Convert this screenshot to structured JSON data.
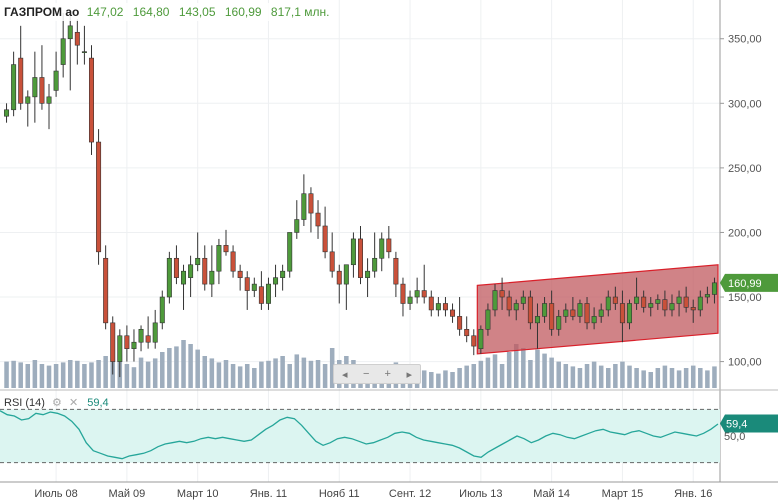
{
  "header": {
    "symbol": "ГАЗПРОМ ао",
    "open": "147,02",
    "high": "164,80",
    "low": "143,05",
    "close": "160,99",
    "volume": "817,1 млн."
  },
  "nav": {
    "prev": "◂",
    "zoom_out": "−",
    "zoom_in": "+",
    "next": "▸"
  },
  "colors": {
    "up": "#4e9a3b",
    "down": "#c9513a",
    "volume": "#9eadbd",
    "channel_fill": "#c05a5f",
    "channel_edge": "#d9202a",
    "rsi_line": "#26a69a",
    "rsi_fill": "#dcf5f1",
    "price_tag": "#4e9a3b",
    "rsi_tag": "#1a8a7a"
  },
  "chart_data": [
    {
      "type": "candlestick",
      "title": "",
      "ylim": [
        78,
        380
      ],
      "yticks": [
        "100,00",
        "150,00",
        "200,00",
        "250,00",
        "300,00",
        "350,00"
      ],
      "xticks": [
        {
          "label": "Июль 08",
          "index": 7
        },
        {
          "label": "Май 09",
          "index": 17
        },
        {
          "label": "Март 10",
          "index": 27
        },
        {
          "label": "Янв. 11",
          "index": 37
        },
        {
          "label": "Нояб 11",
          "index": 47
        },
        {
          "label": "Сент. 12",
          "index": 57
        },
        {
          "label": "Июль 13",
          "index": 67
        },
        {
          "label": "Май 14",
          "index": 77
        },
        {
          "label": "Март 15",
          "index": 87
        },
        {
          "label": "Янв. 16",
          "index": 97
        }
      ],
      "current_price_label": "160,99",
      "current_price": 161,
      "channel": {
        "start_index": 67,
        "upper": [
          159,
          175
        ],
        "lower": [
          106,
          122
        ]
      },
      "ohlc": [
        [
          290,
          300,
          285,
          295
        ],
        [
          295,
          340,
          290,
          330
        ],
        [
          335,
          360,
          295,
          300
        ],
        [
          300,
          310,
          282,
          305
        ],
        [
          305,
          340,
          285,
          320
        ],
        [
          320,
          345,
          295,
          300
        ],
        [
          300,
          315,
          280,
          305
        ],
        [
          310,
          340,
          305,
          325
        ],
        [
          330,
          370,
          320,
          350
        ],
        [
          350,
          370,
          310,
          360
        ],
        [
          355,
          365,
          330,
          345
        ],
        [
          340,
          360,
          330,
          340
        ],
        [
          335,
          345,
          260,
          270
        ],
        [
          270,
          280,
          175,
          185
        ],
        [
          180,
          190,
          125,
          130
        ],
        [
          130,
          135,
          90,
          100
        ],
        [
          100,
          125,
          88,
          120
        ],
        [
          120,
          128,
          100,
          110
        ],
        [
          110,
          125,
          100,
          115
        ],
        [
          115,
          128,
          108,
          125
        ],
        [
          120,
          135,
          110,
          115
        ],
        [
          115,
          140,
          110,
          130
        ],
        [
          130,
          155,
          125,
          150
        ],
        [
          150,
          185,
          145,
          180
        ],
        [
          180,
          190,
          160,
          165
        ],
        [
          160,
          175,
          140,
          170
        ],
        [
          165,
          182,
          150,
          175
        ],
        [
          175,
          200,
          170,
          180
        ],
        [
          180,
          190,
          155,
          160
        ],
        [
          160,
          190,
          150,
          170
        ],
        [
          170,
          195,
          160,
          190
        ],
        [
          190,
          202,
          182,
          185
        ],
        [
          185,
          190,
          165,
          170
        ],
        [
          170,
          175,
          155,
          165
        ],
        [
          165,
          170,
          140,
          155
        ],
        [
          155,
          165,
          150,
          160
        ],
        [
          158,
          170,
          140,
          145
        ],
        [
          145,
          165,
          140,
          160
        ],
        [
          160,
          175,
          150,
          165
        ],
        [
          165,
          175,
          155,
          170
        ],
        [
          170,
          200,
          165,
          200
        ],
        [
          200,
          225,
          195,
          210
        ],
        [
          210,
          245,
          205,
          230
        ],
        [
          230,
          235,
          200,
          215
        ],
        [
          215,
          225,
          195,
          205
        ],
        [
          205,
          220,
          180,
          185
        ],
        [
          185,
          200,
          165,
          170
        ],
        [
          170,
          175,
          145,
          160
        ],
        [
          160,
          175,
          140,
          175
        ],
        [
          175,
          200,
          165,
          195
        ],
        [
          195,
          205,
          160,
          165
        ],
        [
          165,
          180,
          150,
          170
        ],
        [
          170,
          200,
          165,
          180
        ],
        [
          180,
          200,
          170,
          195
        ],
        [
          195,
          205,
          180,
          185
        ],
        [
          180,
          185,
          150,
          160
        ],
        [
          160,
          165,
          135,
          145
        ],
        [
          145,
          155,
          140,
          150
        ],
        [
          150,
          165,
          145,
          155
        ],
        [
          155,
          175,
          145,
          150
        ],
        [
          150,
          155,
          135,
          140
        ],
        [
          140,
          150,
          135,
          145
        ],
        [
          145,
          150,
          135,
          140
        ],
        [
          140,
          145,
          130,
          135
        ],
        [
          135,
          150,
          120,
          125
        ],
        [
          125,
          135,
          115,
          120
        ],
        [
          120,
          125,
          105,
          112
        ],
        [
          110,
          128,
          106,
          125
        ],
        [
          125,
          145,
          120,
          140
        ],
        [
          140,
          160,
          135,
          155
        ],
        [
          155,
          165,
          140,
          150
        ],
        [
          150,
          155,
          135,
          140
        ],
        [
          140,
          148,
          132,
          145
        ],
        [
          145,
          155,
          140,
          150
        ],
        [
          150,
          155,
          125,
          130
        ],
        [
          130,
          145,
          110,
          135
        ],
        [
          135,
          150,
          130,
          145
        ],
        [
          145,
          155,
          120,
          125
        ],
        [
          125,
          140,
          120,
          135
        ],
        [
          135,
          145,
          130,
          140
        ],
        [
          140,
          150,
          132,
          135
        ],
        [
          135,
          148,
          130,
          145
        ],
        [
          145,
          150,
          125,
          130
        ],
        [
          130,
          142,
          125,
          135
        ],
        [
          135,
          145,
          130,
          140
        ],
        [
          140,
          155,
          135,
          150
        ],
        [
          150,
          158,
          140,
          145
        ],
        [
          145,
          155,
          115,
          130
        ],
        [
          130,
          148,
          125,
          145
        ],
        [
          145,
          165,
          140,
          150
        ],
        [
          150,
          155,
          138,
          142
        ],
        [
          142,
          150,
          135,
          145
        ],
        [
          145,
          152,
          140,
          148
        ],
        [
          148,
          155,
          135,
          140
        ],
        [
          140,
          152,
          135,
          145
        ],
        [
          145,
          155,
          135,
          150
        ],
        [
          150,
          158,
          138,
          142
        ],
        [
          142,
          148,
          130,
          140
        ],
        [
          140,
          155,
          135,
          150
        ],
        [
          150,
          158,
          145,
          152
        ],
        [
          152,
          165,
          145,
          161
        ]
      ],
      "volume": [
        0.33,
        0.34,
        0.32,
        0.3,
        0.35,
        0.3,
        0.28,
        0.3,
        0.32,
        0.35,
        0.34,
        0.3,
        0.32,
        0.35,
        0.4,
        0.38,
        0.42,
        0.3,
        0.26,
        0.38,
        0.33,
        0.37,
        0.45,
        0.5,
        0.52,
        0.6,
        0.55,
        0.48,
        0.4,
        0.37,
        0.32,
        0.35,
        0.3,
        0.27,
        0.3,
        0.25,
        0.33,
        0.34,
        0.37,
        0.4,
        0.3,
        0.42,
        0.38,
        0.34,
        0.35,
        0.3,
        0.5,
        0.35,
        0.4,
        0.35,
        0.3,
        0.28,
        0.3,
        0.23,
        0.26,
        0.32,
        0.22,
        0.25,
        0.2,
        0.22,
        0.2,
        0.18,
        0.22,
        0.2,
        0.25,
        0.28,
        0.3,
        0.34,
        0.38,
        0.42,
        0.3,
        0.45,
        0.55,
        0.5,
        0.35,
        0.48,
        0.43,
        0.38,
        0.33,
        0.3,
        0.27,
        0.25,
        0.3,
        0.33,
        0.28,
        0.25,
        0.3,
        0.33,
        0.28,
        0.25,
        0.22,
        0.2,
        0.25,
        0.28,
        0.25,
        0.22,
        0.25,
        0.28,
        0.25,
        0.22,
        0.27
      ],
      "volume_note": "relative heights (0–1) of the volume pane"
    },
    {
      "type": "line",
      "title": "RSI (14)",
      "name": "RSI (14)",
      "current_value": 59.4,
      "current_label": "59,4",
      "ylim": [
        20,
        80
      ],
      "levels": [
        70,
        30
      ],
      "tick_label": "50,0",
      "values": [
        69,
        66,
        65,
        62,
        63,
        67,
        66,
        68,
        67,
        65,
        61,
        55,
        45,
        39,
        37,
        35,
        34,
        33,
        35,
        36,
        37,
        39,
        42,
        44,
        45,
        46,
        45,
        46,
        48,
        49,
        48,
        49,
        48,
        47,
        46,
        47,
        51,
        55,
        58,
        62,
        64,
        63,
        58,
        52,
        46,
        43,
        45,
        48,
        49,
        48,
        46,
        44,
        45,
        47,
        49,
        52,
        53,
        52,
        49,
        47,
        46,
        45,
        44,
        43,
        41,
        38,
        35,
        34,
        38,
        41,
        44,
        47,
        50,
        48,
        45,
        47,
        50,
        52,
        51,
        49,
        48,
        50,
        52,
        54,
        55,
        53,
        52,
        51,
        53,
        54,
        52,
        50,
        49,
        51,
        53,
        52,
        51,
        50,
        52,
        55,
        59
      ]
    }
  ]
}
